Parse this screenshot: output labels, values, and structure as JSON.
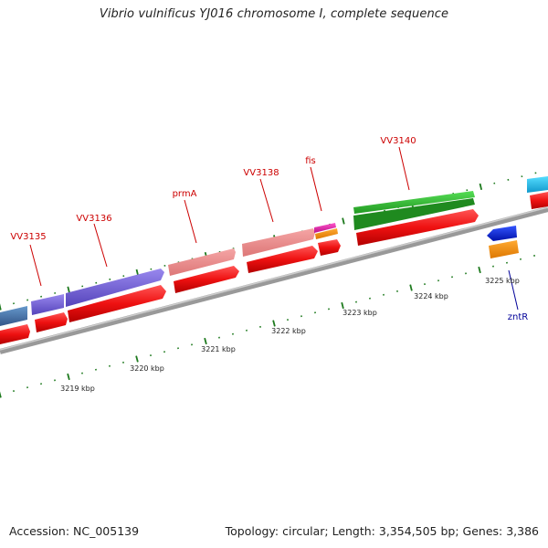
{
  "header": {
    "title": "Vibrio vulnificus YJ016 chromosome I, complete sequence"
  },
  "footer": {
    "accession": "Accession: NC_005139",
    "topology": "Topology: circular; Length: 3,354,505 bp; Genes: 3,386"
  },
  "colors": {
    "backbone": "#8a8a8a",
    "tick": "#1e7a1e",
    "label_red": "#cc0000",
    "label_blue": "#000099",
    "cds_red": "#ee1111",
    "purple": "#6a55cc",
    "salmon": "#ee8888",
    "green": "#33bb33",
    "steelblue": "#4477aa",
    "magenta": "#dd33aa",
    "orange": "#ff8800",
    "blue": "#1133dd",
    "cyan": "#22bbee"
  },
  "scale": {
    "labels": [
      "3219 kbp",
      "3220 kbp",
      "3221 kbp",
      "3222 kbp",
      "3223 kbp",
      "3224 kbp",
      "3225 kbp"
    ]
  },
  "genes": [
    {
      "name": "VV3135",
      "color": "label_red"
    },
    {
      "name": "VV3136",
      "color": "label_red"
    },
    {
      "name": "prmA",
      "color": "label_red"
    },
    {
      "name": "VV3138",
      "color": "label_red"
    },
    {
      "name": "fis",
      "color": "label_red"
    },
    {
      "name": "VV3140",
      "color": "label_red"
    },
    {
      "name": "zntR",
      "color": "label_blue"
    }
  ]
}
